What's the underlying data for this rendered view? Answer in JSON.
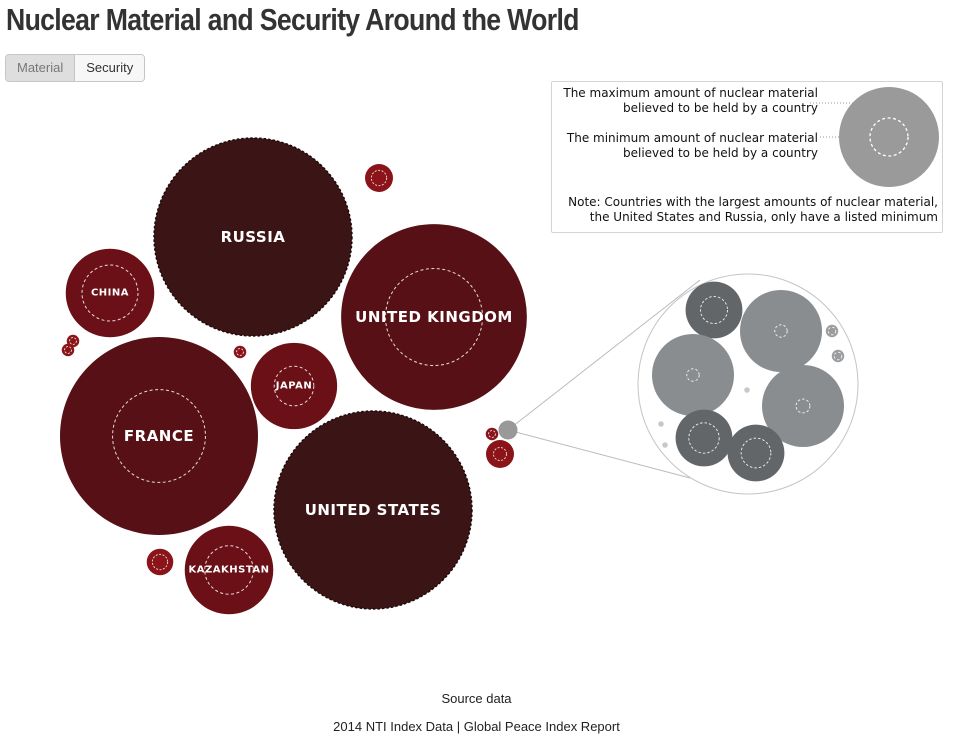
{
  "page": {
    "title": "Nuclear Material and Security Around the World",
    "tabs": [
      {
        "label": "Material",
        "active": true
      },
      {
        "label": "Security",
        "active": false
      }
    ]
  },
  "legend": {
    "max_line1": "The maximum amount of nuclear material",
    "max_line2": "believed to be held by a country",
    "min_line1": "The minimum amount of nuclear material",
    "min_line2": "believed to be held by a country",
    "note_line1": "Note: Countries with the largest amounts of nuclear material,",
    "note_line2": "the United States and Russia, only have a listed minimum"
  },
  "footer": {
    "source_label": "Source data",
    "source_text": "2014 NTI Index Data | Global Peace Index Report"
  },
  "colors": {
    "only_minimum": "#3b1416",
    "large": "#571116",
    "medium": "#6a1016",
    "small": "#8a1419",
    "zoom_dark": "#636668",
    "zoom_light": "#8a8d8f",
    "legend_grey": "#9a9a9a"
  },
  "chart_data": {
    "type": "bubble",
    "title": "Nuclear Material and Security Around the World",
    "encoding": "circle area = maximum amount of nuclear material believed held; dashed inner circle = minimum amount",
    "relative_scale_note": "values are relative area units estimated from the bubble sizes (no numeric labels shown)",
    "countries": [
      {
        "name": "RUSSIA",
        "max": null,
        "min": 100,
        "only_minimum": true
      },
      {
        "name": "UNITED STATES",
        "max": null,
        "min": 100,
        "only_minimum": true
      },
      {
        "name": "UNITED KINGDOM",
        "max": 88,
        "min": 24
      },
      {
        "name": "FRANCE",
        "max": 100,
        "min": 22
      },
      {
        "name": "CHINA",
        "max": 20,
        "min": 8
      },
      {
        "name": "JAPAN",
        "max": 19,
        "min": 4
      },
      {
        "name": "KAZAKHSTAN",
        "max": 20,
        "min": 6
      }
    ],
    "unlabeled_small": [
      {
        "max": 2.0,
        "min": 0.6
      },
      {
        "max": 1.8,
        "min": 0.6
      },
      {
        "max": 0.4,
        "min": 0.12
      },
      {
        "max": 0.4,
        "min": 0.12
      },
      {
        "max": 0.4,
        "min": 0.12
      },
      {
        "max": 0.4,
        "min": 0.12
      },
      {
        "max": 0.4,
        "min": 0.1
      }
    ],
    "zoom_inset": [
      {
        "max": 0.84,
        "min": 0.19
      },
      {
        "max": 1.75,
        "min": 0.04
      },
      {
        "max": 1.75,
        "min": 0.04
      },
      {
        "max": 1.75,
        "min": 0.05
      },
      {
        "max": 0.84,
        "min": 0.24
      },
      {
        "max": 0.84,
        "min": 0.23
      },
      {
        "max": 0.04,
        "min": 0.015
      },
      {
        "max": 0.04,
        "min": 0.015
      },
      {
        "max": 0.008,
        "min": 0
      },
      {
        "max": 0.008,
        "min": 0
      },
      {
        "max": 0.008,
        "min": 0
      }
    ]
  }
}
